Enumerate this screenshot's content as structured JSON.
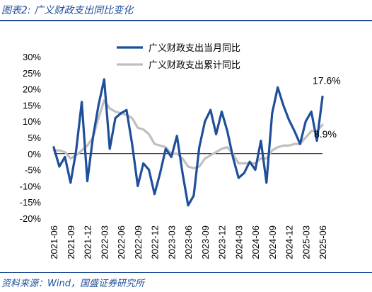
{
  "figure": {
    "title": "图表2:  广义财政支出同比变化",
    "source": "资料来源：Wind，国盛证券研究所"
  },
  "colors": {
    "frame": "#1f4e9a",
    "series_monthly": "#1f4e9a",
    "series_cumulative": "#bfbfbf",
    "axis_text": "#000000"
  },
  "chart_data": {
    "type": "line",
    "ylim": [
      -20,
      30
    ],
    "yticks": [
      -20,
      -15,
      -10,
      -5,
      0,
      5,
      10,
      15,
      20,
      25,
      30
    ],
    "ytick_labels": [
      "-20%",
      "-15%",
      "-10%",
      "-5%",
      "0%",
      "5%",
      "10%",
      "15%",
      "20%",
      "25%",
      "30%"
    ],
    "y_unit": "%",
    "x": [
      "2021-06",
      "2021-07",
      "2021-08",
      "2021-09",
      "2021-10",
      "2021-11",
      "2021-12",
      "2022-01",
      "2022-02",
      "2022-03",
      "2022-04",
      "2022-05",
      "2022-06",
      "2022-07",
      "2022-08",
      "2022-09",
      "2022-10",
      "2022-11",
      "2022-12",
      "2023-01",
      "2023-02",
      "2023-03",
      "2023-04",
      "2023-05",
      "2023-06",
      "2023-07",
      "2023-08",
      "2023-09",
      "2023-10",
      "2023-11",
      "2023-12",
      "2024-01",
      "2024-02",
      "2024-03",
      "2024-04",
      "2024-05",
      "2024-06",
      "2024-07",
      "2024-08",
      "2024-09",
      "2024-10",
      "2024-11",
      "2024-12",
      "2025-01",
      "2025-02",
      "2025-03",
      "2025-04",
      "2025-05",
      "2025-06"
    ],
    "xtick_labels": [
      "2021-06",
      "2021-09",
      "2021-12",
      "2022-03",
      "2022-06",
      "2022-09",
      "2022-12",
      "2023-03",
      "2023-06",
      "2023-09",
      "2023-12",
      "2024-03",
      "2024-06",
      "2024-09",
      "2024-12",
      "2025-03",
      "2025-06"
    ],
    "legend_position": "top-center",
    "series": [
      {
        "name": "广义财政支出当月同比",
        "values": [
          2,
          -4,
          -1,
          -9,
          1,
          16,
          -8.5,
          5,
          15,
          23,
          1.5,
          11,
          12.5,
          13.5,
          3,
          -10,
          -3,
          -5,
          -12.5,
          -6,
          1.5,
          -1,
          5.5,
          -6,
          -16,
          -13,
          2,
          10,
          13.5,
          6,
          13,
          7,
          -1,
          -7.5,
          -6,
          -2.5,
          -5,
          4,
          -9,
          12.5,
          20.5,
          15,
          10.5,
          7,
          3,
          10,
          13,
          4,
          17.6
        ],
        "end_label": "17.6%"
      },
      {
        "name": "广义财政支出累计同比",
        "values": [
          1,
          1,
          0.5,
          -1.5,
          -0.5,
          1,
          2.5,
          5,
          11,
          16.5,
          14,
          13,
          12.5,
          12,
          11,
          8,
          7.5,
          6,
          3,
          2.5,
          2,
          0,
          0,
          -1.5,
          -4,
          -4.5,
          -4,
          -1.5,
          -0.5,
          0.5,
          1.5,
          2,
          0,
          -3,
          -3,
          -3,
          -3,
          -1.5,
          -1.5,
          1,
          2,
          2.5,
          2.5,
          3,
          3,
          5,
          7,
          7,
          8.9
        ],
        "end_label": "8.9%"
      }
    ]
  }
}
